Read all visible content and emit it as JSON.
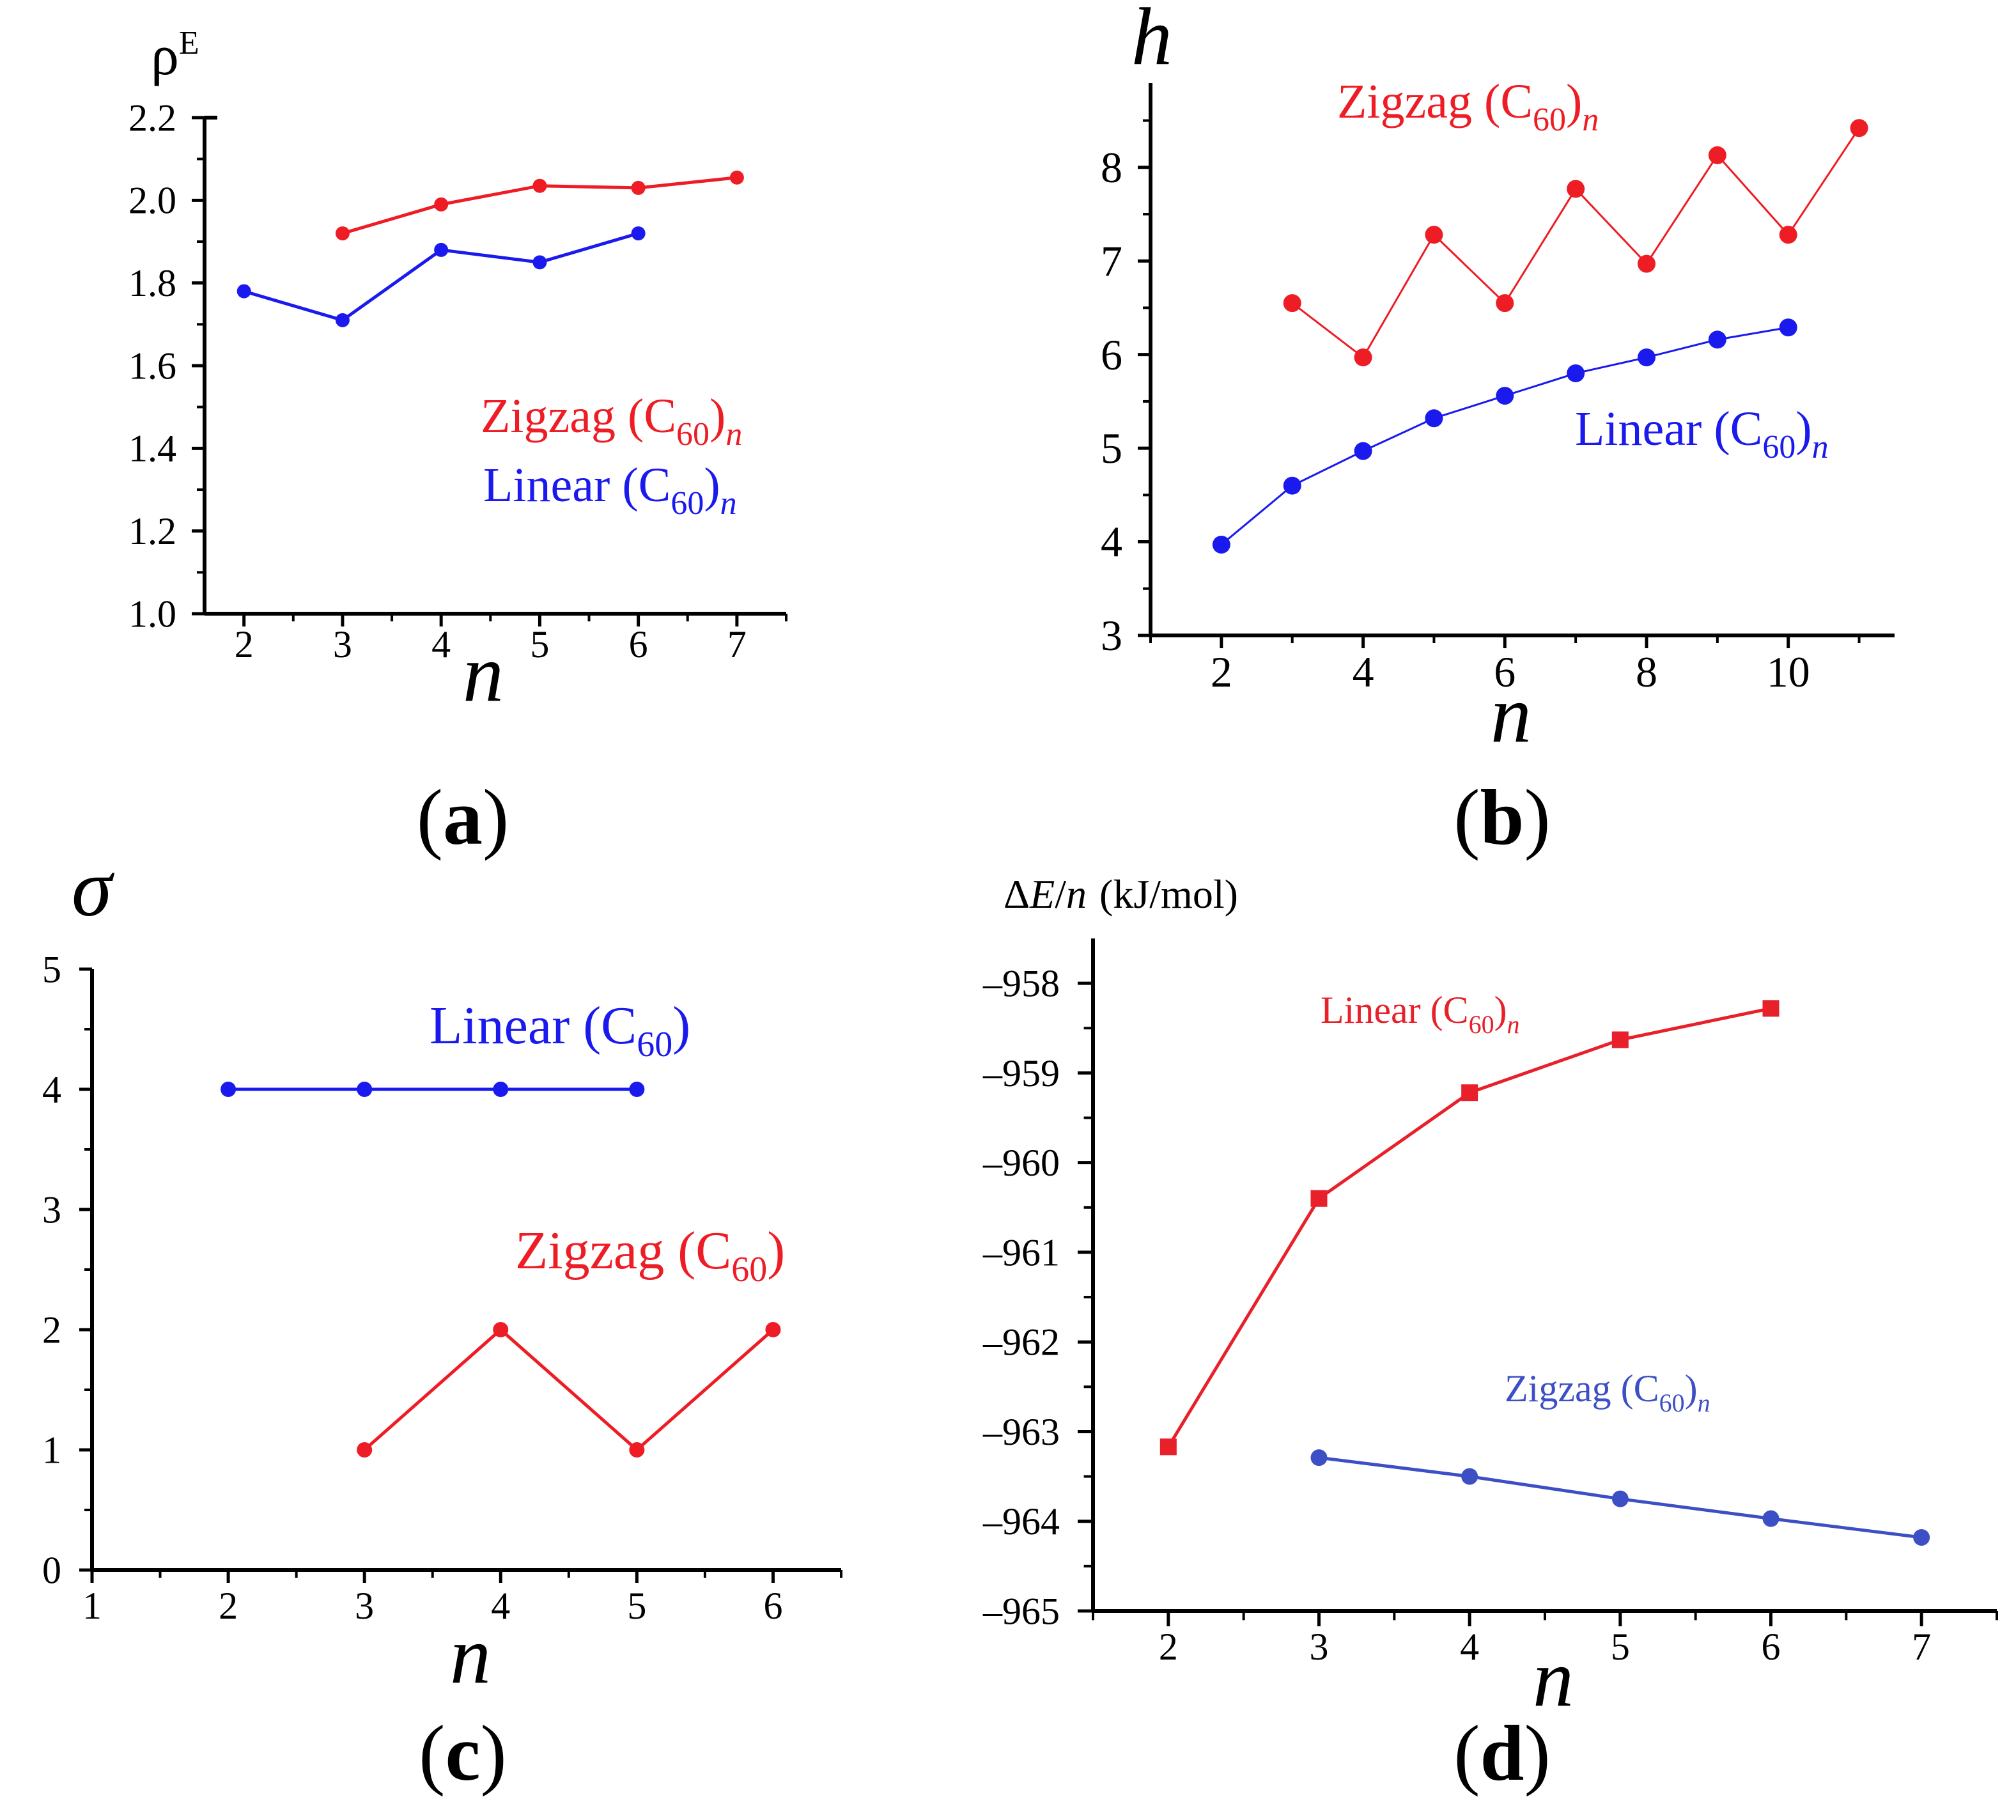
{
  "panels": [
    {
      "id": "a",
      "caption_letter": "a",
      "caption_open": "(",
      "caption_close": ")",
      "chart_data": {
        "type": "line",
        "title": "",
        "ylabel_main": "ρ",
        "ylabel_sup": "E",
        "xlabel": "n",
        "xlim": [
          1.6,
          7.5
        ],
        "ylim": [
          1.0,
          2.2
        ],
        "xticks": [
          2,
          3,
          4,
          5,
          6,
          7
        ],
        "xtick_labels": [
          "2",
          "3",
          "4",
          "5",
          "6",
          "7"
        ],
        "yticks": [
          1.0,
          1.2,
          1.4,
          1.6,
          1.8,
          2.0,
          2.2
        ],
        "ytick_labels": [
          "1.0",
          "1.2",
          "1.4",
          "1.6",
          "1.8",
          "2.0",
          "2.2"
        ],
        "series": [
          {
            "name": "Zigzag",
            "color": "#ee1c25",
            "x": [
              3,
              4,
              5,
              6,
              7
            ],
            "values": [
              1.92,
              1.99,
              2.035,
              2.03,
              2.055
            ]
          },
          {
            "name": "Linear",
            "color": "#1a1aee",
            "x": [
              2,
              3,
              4,
              5,
              6
            ],
            "values": [
              1.78,
              1.71,
              1.88,
              1.85,
              1.92
            ]
          }
        ],
        "legend": [
          {
            "label": "Zigzag (C",
            "sub": "60",
            "close": ")",
            "italic": "n",
            "color": "#ee1c25"
          },
          {
            "label": "Linear (C",
            "sub": "60",
            "close": ")",
            "italic": "n",
            "color": "#1a1aee"
          }
        ]
      }
    },
    {
      "id": "b",
      "caption_letter": "b",
      "caption_open": "(",
      "caption_close": ")",
      "chart_data": {
        "type": "line",
        "title": "",
        "ylabel": "h",
        "xlabel": "n",
        "xlim": [
          1.0,
          11.5
        ],
        "ylim": [
          3,
          8.9
        ],
        "xticks": [
          2,
          4,
          6,
          8,
          10
        ],
        "xtick_labels": [
          "2",
          "4",
          "6",
          "8",
          "10"
        ],
        "yticks": [
          3,
          4,
          5,
          6,
          7,
          8
        ],
        "ytick_labels": [
          "3",
          "4",
          "5",
          "6",
          "7",
          "8"
        ],
        "series": [
          {
            "name": "Zigzag",
            "color": "#ee1c25",
            "x": [
              3,
              4,
              5,
              6,
              7,
              8,
              9,
              10,
              11
            ],
            "values": [
              6.55,
              5.97,
              7.28,
              6.55,
              7.77,
              6.97,
              8.13,
              7.28,
              8.42
            ]
          },
          {
            "name": "Linear",
            "color": "#1a1aee",
            "x": [
              2,
              3,
              4,
              5,
              6,
              7,
              8,
              9,
              10
            ],
            "values": [
              3.97,
              4.6,
              4.97,
              5.32,
              5.56,
              5.8,
              5.97,
              6.16,
              6.29
            ]
          }
        ],
        "legend": [
          {
            "label": "Zigzag (C",
            "sub": "60",
            "close": ")",
            "italic": "n",
            "color": "#ee1c25"
          },
          {
            "label": "Linear (C",
            "sub": "60",
            "close": ")",
            "italic": "n",
            "color": "#1a1aee"
          }
        ]
      }
    },
    {
      "id": "c",
      "caption_letter": "c",
      "caption_open": "(",
      "caption_close": ")",
      "chart_data": {
        "type": "line",
        "title": "",
        "ylabel": "σ",
        "xlabel": "n",
        "xlim": [
          1,
          6.5
        ],
        "ylim": [
          0,
          5
        ],
        "xticks": [
          1,
          2,
          3,
          4,
          5,
          6
        ],
        "xtick_labels": [
          "1",
          "2",
          "3",
          "4",
          "5",
          "6"
        ],
        "yticks": [
          0,
          1,
          2,
          3,
          4,
          5
        ],
        "ytick_labels": [
          "0",
          "1",
          "2",
          "3",
          "4",
          "5"
        ],
        "series": [
          {
            "name": "Linear",
            "color": "#1a1aee",
            "x": [
              2,
              3,
              4,
              5
            ],
            "values": [
              4,
              4,
              4,
              4
            ]
          },
          {
            "name": "Zigzag",
            "color": "#ee1c25",
            "x": [
              3,
              4,
              5,
              6
            ],
            "values": [
              1,
              2,
              1,
              2
            ]
          }
        ],
        "legend": [
          {
            "label": "Linear (C",
            "sub": "60",
            "close": ")",
            "italic": "",
            "color": "#1a1aee"
          },
          {
            "label": "Zigzag (C",
            "sub": "60",
            "close": ")",
            "italic": "",
            "color": "#ee1c25"
          }
        ]
      }
    },
    {
      "id": "d",
      "caption_letter": "d",
      "caption_open": "(",
      "caption_close": ")",
      "chart_data": {
        "type": "line",
        "title": "",
        "ylabel_delta": "Δ",
        "ylabel_E": "E",
        "ylabel_slash": "/",
        "ylabel_n": "n",
        "ylabel_units": "(kJ/mol)",
        "xlabel": "n",
        "xlim": [
          1.5,
          7.5
        ],
        "ylim": [
          -965,
          -957.5
        ],
        "xticks": [
          2,
          3,
          4,
          5,
          6,
          7
        ],
        "xtick_labels": [
          "2",
          "3",
          "4",
          "5",
          "6",
          "7"
        ],
        "yticks": [
          -965,
          -964,
          -963,
          -962,
          -961,
          -960,
          -959,
          -958
        ],
        "ytick_labels": [
          "–965",
          "–964",
          "–963",
          "–962",
          "–961",
          "–960",
          "–959",
          "–958"
        ],
        "series": [
          {
            "name": "Linear",
            "color": "#e8202a",
            "marker": "square",
            "x": [
              2,
              3,
              4,
              5,
              6
            ],
            "values": [
              -963.17,
              -960.4,
              -959.22,
              -958.63,
              -958.28
            ]
          },
          {
            "name": "Zigzag",
            "color": "#3d4fc4",
            "marker": "circle",
            "x": [
              3,
              4,
              5,
              6,
              7
            ],
            "values": [
              -963.29,
              -963.5,
              -963.75,
              -963.97,
              -964.18
            ]
          }
        ],
        "legend": [
          {
            "label": "Linear (C",
            "sub": "60",
            "close": ")",
            "italic": "n",
            "color": "#e8202a"
          },
          {
            "label": "Zigzag (C",
            "sub": "60",
            "close": ")",
            "italic": "n",
            "color": "#3d4fc4"
          }
        ]
      }
    }
  ]
}
